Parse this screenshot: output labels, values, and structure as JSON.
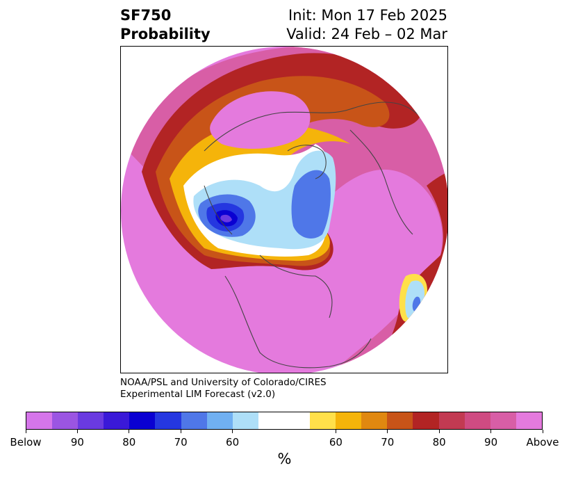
{
  "title": {
    "variable": "SF750",
    "subtitle": "Probability",
    "init": "Init: Mon 17 Feb 2025",
    "valid": "Valid: 24 Feb – 02 Mar"
  },
  "credit": {
    "line1": "NOAA/PSL and University of Colorado/CIRES",
    "line2": "Experimental LIM Forecast (v2.0)"
  },
  "colorbar": {
    "unit": "%",
    "colors": [
      "#d575ea",
      "#9b55e2",
      "#6a3ae0",
      "#3a19d8",
      "#0a00d2",
      "#2537e0",
      "#4f77e8",
      "#70b0f2",
      "#aedff8",
      "#ffffff",
      "#ffe04a",
      "#f5b40a",
      "#e08810",
      "#c85418",
      "#b22424",
      "#c23a52",
      "#cf4b82",
      "#d85ea6",
      "#e47add"
    ],
    "tick_labels": [
      "Below",
      "90",
      "80",
      "70",
      "60",
      "60",
      "70",
      "80",
      "90",
      "Above"
    ]
  },
  "map": {
    "projection": "north-polar-stereographic",
    "variable": "SF750",
    "description_colors": {
      "above_strong": "#e47add",
      "above_mid": "#cf4b82",
      "above_red": "#b22424",
      "above_orange": "#c85418",
      "above_yellow": "#f5b40a",
      "below_light": "#aedff8",
      "below_mid": "#4f77e8",
      "below_strong": "#0a00d2"
    }
  }
}
